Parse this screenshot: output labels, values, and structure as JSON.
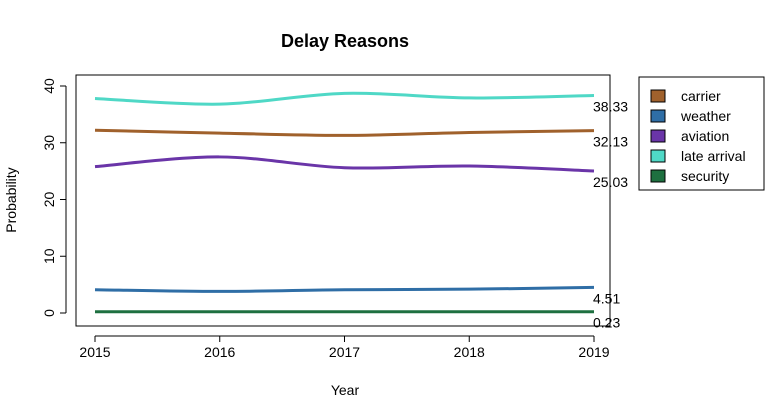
{
  "chart_data": {
    "type": "line",
    "title": "Delay Reasons",
    "xlabel": "Year",
    "ylabel": "Probability",
    "x": [
      2015,
      2016,
      2017,
      2018,
      2019
    ],
    "xlim": [
      2015,
      2019
    ],
    "ylim": [
      0,
      40
    ],
    "yticks": [
      0,
      10,
      20,
      30,
      40
    ],
    "grid": false,
    "legend_position": "right",
    "series": [
      {
        "name": "carrier",
        "color": "#a0612c",
        "values": [
          32.2,
          31.7,
          31.3,
          31.8,
          32.13
        ],
        "end_label": "32.13"
      },
      {
        "name": "weather",
        "color": "#2f6ea6",
        "values": [
          4.1,
          3.8,
          4.1,
          4.2,
          4.51
        ],
        "end_label": "4.51"
      },
      {
        "name": "aviation",
        "color": "#6a35a8",
        "values": [
          25.8,
          27.5,
          25.6,
          25.9,
          25.03
        ],
        "end_label": "25.03"
      },
      {
        "name": "late arrival",
        "color": "#4fd8c6",
        "values": [
          37.8,
          36.8,
          38.7,
          37.9,
          38.33
        ],
        "end_label": "38.33"
      },
      {
        "name": "security",
        "color": "#1e7040",
        "values": [
          0.23,
          0.23,
          0.23,
          0.23,
          0.23
        ],
        "end_label": "0.23"
      }
    ]
  }
}
